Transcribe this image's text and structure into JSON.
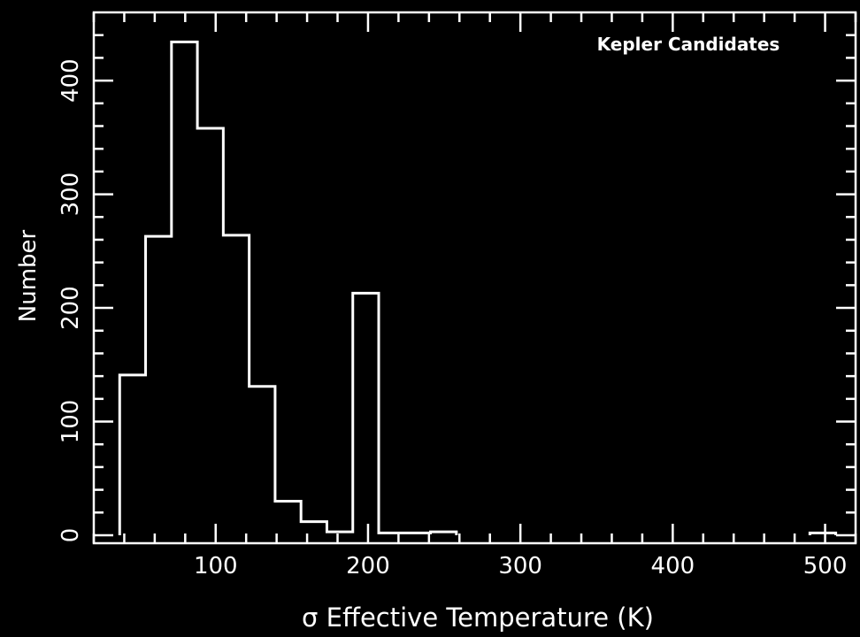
{
  "chart_data": {
    "type": "histogram",
    "title": "",
    "annotation": "Kepler Candidates",
    "xlabel": "σ Effective Temperature (K)",
    "ylabel": "Number",
    "xlim": [
      20,
      520
    ],
    "ylim": [
      -7,
      460
    ],
    "xticks": [
      100,
      200,
      300,
      400,
      500
    ],
    "xtick_labels": [
      "100",
      "200",
      "300",
      "400",
      "500"
    ],
    "yticks": [
      0,
      100,
      200,
      300,
      400
    ],
    "ytick_labels": [
      "0",
      "100",
      "200",
      "300",
      "400"
    ],
    "bin_edges": [
      37,
      54,
      71,
      88,
      105,
      122,
      139,
      156,
      173,
      190,
      207,
      224,
      241,
      258
    ],
    "counts": [
      141,
      263,
      434,
      358,
      264,
      131,
      30,
      12,
      3,
      213,
      2,
      2,
      3
    ],
    "extra_bins": [
      {
        "x_start": 490,
        "x_end": 507,
        "count": 2
      }
    ],
    "grid": false,
    "colors": {
      "background": "#000000",
      "foreground": "#ffffff"
    }
  }
}
